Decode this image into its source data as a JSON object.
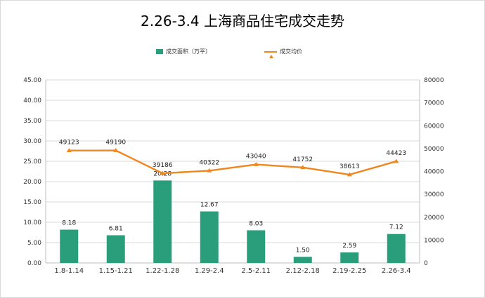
{
  "chart_data": {
    "type": "bar",
    "title": "2.26-3.4 上海商品住宅成交走势",
    "categories": [
      "1.8-1.14",
      "1.15-1.21",
      "1.22-1.28",
      "1.29-2.4",
      "2.5-2.11",
      "2.12-2.18",
      "2.19-2.25",
      "2.26-3.4"
    ],
    "series": [
      {
        "name": "成交面积（万平）",
        "type": "bar",
        "axis": "left",
        "color": "#2a9d7a",
        "values": [
          8.18,
          6.81,
          20.28,
          12.67,
          8.03,
          1.5,
          2.59,
          7.12
        ],
        "labels": [
          "8.18",
          "6.81",
          "20.28",
          "12.67",
          "8.03",
          "1.50",
          "2.59",
          "7.12"
        ]
      },
      {
        "name": "成交均价",
        "type": "line",
        "axis": "right",
        "color": "#f0861e",
        "values": [
          49123,
          49190,
          39186,
          40322,
          43040,
          41752,
          38613,
          44423
        ],
        "labels": [
          "49123",
          "49190",
          "39186",
          "40322",
          "43040",
          "41752",
          "38613",
          "44423"
        ]
      }
    ],
    "y_left": {
      "min": 0,
      "max": 45,
      "step": 5,
      "ticks": [
        "0.00",
        "5.00",
        "10.00",
        "15.00",
        "20.00",
        "25.00",
        "30.00",
        "35.00",
        "40.00",
        "45.00"
      ]
    },
    "y_right": {
      "min": 0,
      "max": 80000,
      "step": 10000,
      "ticks": [
        "0",
        "10000",
        "20000",
        "30000",
        "40000",
        "50000",
        "60000",
        "70000",
        "80000"
      ]
    },
    "grid": true,
    "legend_position": "top"
  }
}
